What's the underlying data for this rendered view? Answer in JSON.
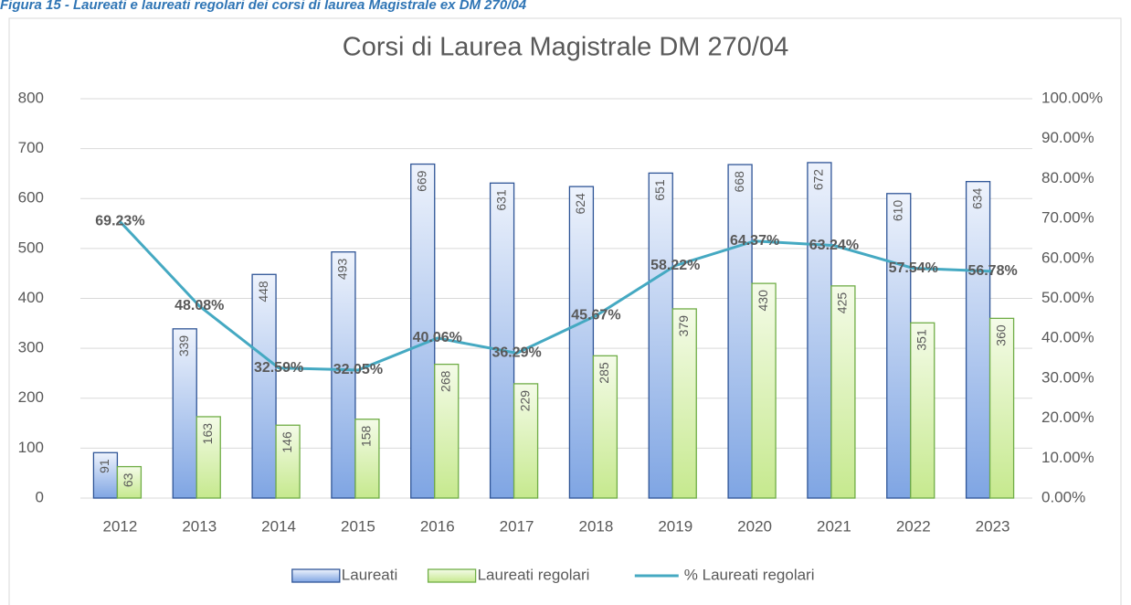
{
  "caption": "Figura 15 - Laureati e laureati regolari dei corsi di laurea Magistrale ex DM 270/04",
  "chart_data": {
    "type": "bar",
    "title": "Corsi di Laurea Magistrale DM 270/04",
    "categories": [
      "2012",
      "2013",
      "2014",
      "2015",
      "2016",
      "2017",
      "2018",
      "2019",
      "2020",
      "2021",
      "2022",
      "2023"
    ],
    "series": [
      {
        "name": "Laureati",
        "color": "#2f5597",
        "values": [
          91,
          339,
          448,
          493,
          669,
          631,
          624,
          651,
          668,
          672,
          610,
          634
        ]
      },
      {
        "name": "Laureati regolari",
        "color": "#70ad47",
        "values": [
          63,
          163,
          146,
          158,
          268,
          229,
          285,
          379,
          430,
          425,
          351,
          360
        ]
      },
      {
        "name": "% Laureati regolari",
        "color": "#45a9c2",
        "type": "line",
        "axis": "y2",
        "values": [
          69.23,
          48.08,
          32.59,
          32.05,
          40.06,
          36.29,
          45.67,
          58.22,
          64.37,
          63.24,
          57.54,
          56.78
        ],
        "value_labels": [
          "69.23%",
          "48.08%",
          "32.59%",
          "32.05%",
          "40.06%",
          "36.29%",
          "45.67%",
          "58.22%",
          "64.37%",
          "63.24%",
          "57.54%",
          "56.78%"
        ]
      }
    ],
    "ylim": [
      0,
      800
    ],
    "yticks": [
      0,
      100,
      200,
      300,
      400,
      500,
      600,
      700,
      800
    ],
    "y2lim": [
      0,
      100
    ],
    "y2ticks": [
      {
        "value": 0,
        "label": "0.00%"
      },
      {
        "value": 10,
        "label": "10.00%"
      },
      {
        "value": 20,
        "label": "20.00%"
      },
      {
        "value": 30,
        "label": "30.00%"
      },
      {
        "value": 40,
        "label": "40.00%"
      },
      {
        "value": 50,
        "label": "50.00%"
      },
      {
        "value": 60,
        "label": "60.00%"
      },
      {
        "value": 70,
        "label": "70.00%"
      },
      {
        "value": 80,
        "label": "80.00%"
      },
      {
        "value": 90,
        "label": "90.00%"
      },
      {
        "value": 100,
        "label": "100.00%"
      }
    ],
    "grid": true,
    "legend": "bottom"
  }
}
